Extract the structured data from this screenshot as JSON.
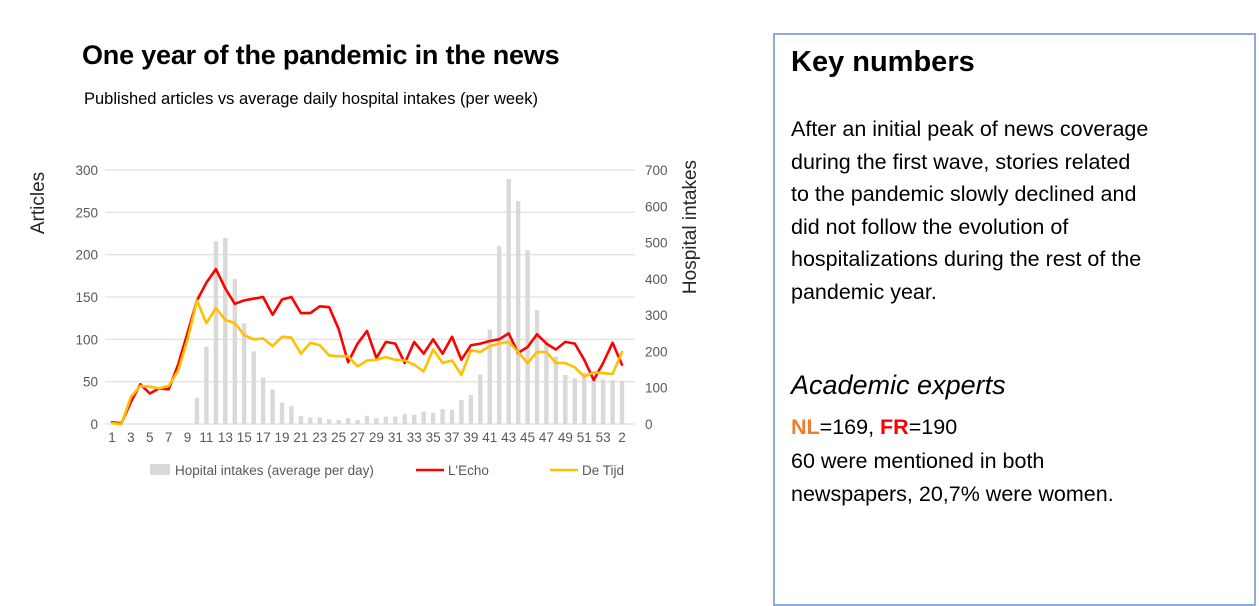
{
  "chart_data": {
    "type": "combo-bar-line",
    "title": "One year of the pandemic in the news",
    "subtitle": "Published articles vs average daily hospital intakes (per week)",
    "ylabel_left": "Articles",
    "ylabel_right": "Hospital intakes",
    "left_ylim": [
      0,
      300
    ],
    "left_tick_step": 50,
    "right_ylim": [
      0,
      700
    ],
    "right_tick_step": 100,
    "grid": true,
    "legend_position": "bottom",
    "x_labels": [
      "1",
      "2",
      "3",
      "4",
      "5",
      "6",
      "7",
      "8",
      "9",
      "10",
      "11",
      "12",
      "13",
      "14",
      "15",
      "16",
      "17",
      "18",
      "19",
      "20",
      "21",
      "22",
      "23",
      "24",
      "25",
      "26",
      "27",
      "28",
      "29",
      "30",
      "31",
      "32",
      "33",
      "34",
      "35",
      "36",
      "37",
      "38",
      "39",
      "40",
      "41",
      "42",
      "43",
      "44",
      "45",
      "46",
      "47",
      "48",
      "49",
      "50",
      "51",
      "52",
      "53",
      "1",
      "2"
    ],
    "x_tick_labels_shown": [
      "1",
      "3",
      "5",
      "7",
      "9",
      "11",
      "13",
      "15",
      "17",
      "19",
      "21",
      "23",
      "25",
      "27",
      "29",
      "31",
      "33",
      "35",
      "37",
      "39",
      "41",
      "43",
      "45",
      "47",
      "49",
      "51",
      "53",
      "2"
    ],
    "bars": {
      "name": "Hopital intakes (average per day)",
      "axis": "right",
      "color": "#D9D9D9",
      "values": [
        0,
        0,
        0,
        0,
        0,
        0,
        0,
        0,
        0,
        72,
        213,
        504,
        513,
        400,
        277,
        200,
        128,
        95,
        59,
        50,
        22,
        18,
        18,
        13,
        11,
        16,
        11,
        23,
        16,
        20,
        20,
        28,
        25,
        34,
        31,
        41,
        39,
        66,
        80,
        137,
        260,
        490,
        675,
        614,
        479,
        314,
        236,
        186,
        135,
        126,
        141,
        123,
        123,
        121,
        119
      ]
    },
    "series": [
      {
        "name": "L'Echo",
        "axis": "left",
        "color": "#FF0000",
        "values": [
          2,
          1,
          26,
          47,
          36,
          42,
          41,
          70,
          108,
          146,
          167,
          183,
          160,
          142,
          146,
          148,
          150,
          129,
          147,
          150,
          131,
          131,
          139,
          138,
          112,
          73,
          95,
          110,
          78,
          97,
          95,
          72,
          97,
          83,
          100,
          83,
          103,
          76,
          93,
          95,
          98,
          100,
          107,
          84,
          91,
          106,
          95,
          88,
          97,
          95,
          76,
          52,
          72,
          96,
          70
        ]
      },
      {
        "name": "De Tijd",
        "axis": "left",
        "color": "#FFC000",
        "values": [
          1,
          0,
          32,
          45,
          44,
          42,
          45,
          63,
          100,
          146,
          119,
          137,
          123,
          119,
          105,
          100,
          101,
          92,
          103,
          102,
          83,
          96,
          93,
          81,
          80,
          80,
          68,
          75,
          76,
          79,
          76,
          75,
          70,
          62,
          88,
          72,
          75,
          58,
          87,
          85,
          92,
          95,
          97,
          85,
          72,
          85,
          85,
          72,
          72,
          67,
          56,
          61,
          60,
          59,
          85
        ]
      }
    ],
    "colors": {
      "gridline": "#D9D9D9",
      "tick_text": "#595959",
      "axis_title_text": "#262626"
    }
  },
  "key_numbers": {
    "heading": "Key numbers",
    "paragraph_lines": [
      "After an initial peak of news coverage",
      "during the first wave, stories related",
      "to the pandemic slowly declined and",
      "did not follow the evolution of",
      "hospitalizations during the rest of the",
      "pandemic year."
    ],
    "subheading": "Academic experts",
    "stats": {
      "nl_label": "NL",
      "nl_rest": "=169, ",
      "fr_label": "FR",
      "fr_rest": "=190",
      "nl_color": "#ED7D31",
      "fr_color": "#FF0000"
    },
    "footer_lines": [
      "60 were mentioned in both",
      "newspapers, 20,7% were women."
    ],
    "border_color": "#8FAADC"
  }
}
